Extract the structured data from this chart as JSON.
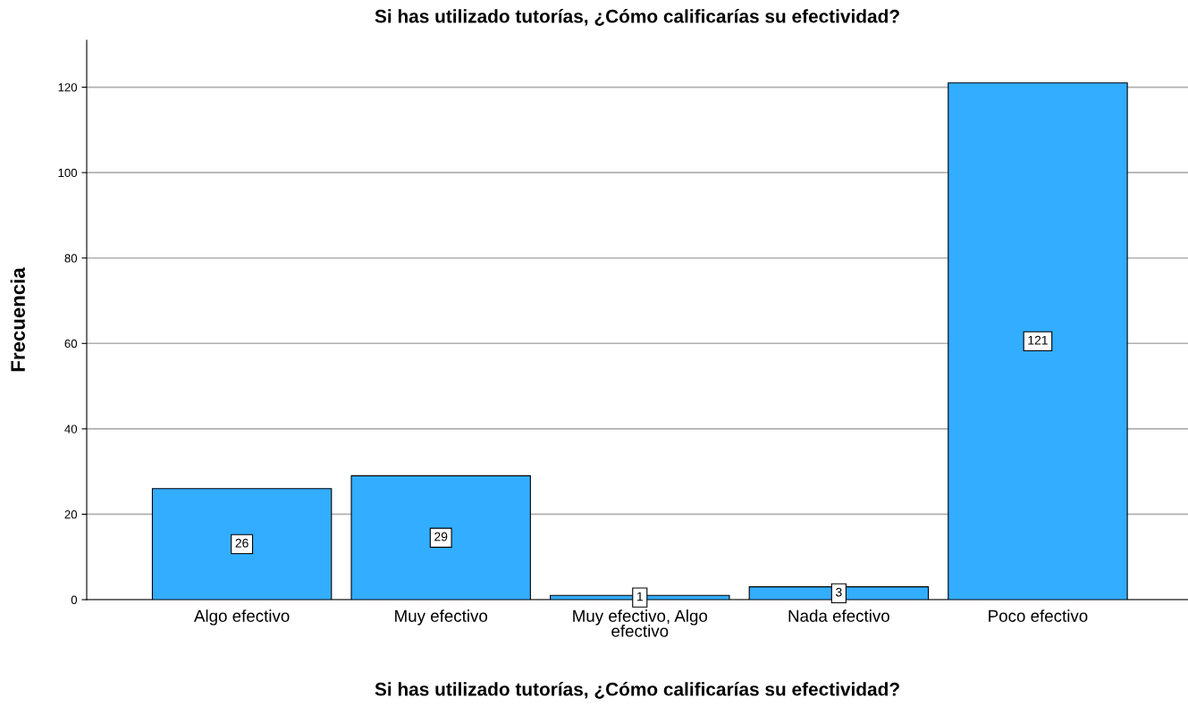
{
  "chart_data": {
    "type": "bar",
    "title": "Si has utilizado tutorías, ¿Cómo calificarías su efectividad?",
    "xlabel": "Si has utilizado tutorías, ¿Cómo calificarías su efectividad?",
    "ylabel": "Frecuencia",
    "categories": [
      "Algo efectivo",
      "Muy efectivo",
      "Muy efectivo, Algo efectivo",
      "Nada efectivo",
      "Poco efectivo"
    ],
    "values": [
      26,
      29,
      1,
      3,
      121
    ],
    "color": "#33adff",
    "ylim": [
      0,
      131
    ],
    "yticks": [
      0,
      20,
      40,
      60,
      80,
      100,
      120
    ],
    "grid": "y",
    "data_labels": true
  }
}
